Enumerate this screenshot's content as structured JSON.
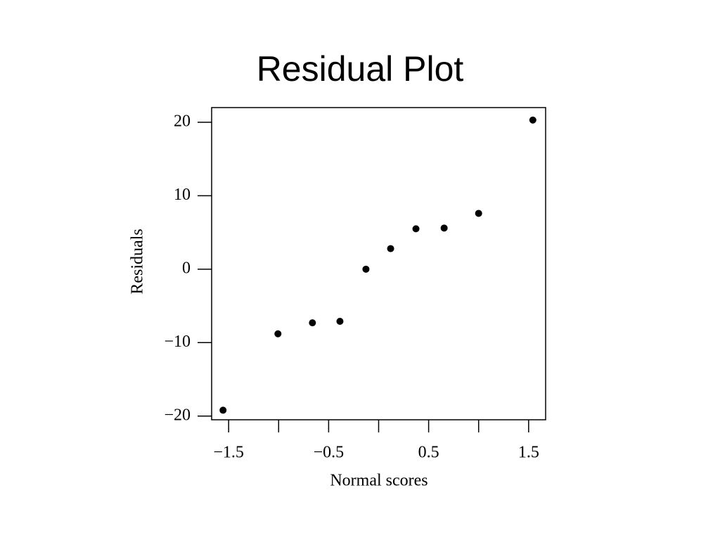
{
  "chart_data": {
    "type": "scatter",
    "title": "Residual Plot",
    "x_label": "Normal scores",
    "y_label": "Residuals",
    "x": [
      -1.556,
      -1.007,
      -0.662,
      -0.387,
      -0.127,
      0.12,
      0.373,
      0.655,
      1.0,
      1.542
    ],
    "values": [
      -19.2,
      -8.8,
      -7.3,
      -7.1,
      0,
      2.8,
      5.5,
      5.6,
      7.6,
      20.3
    ],
    "color": "#000000",
    "xlim": [
      -1.67,
      1.67
    ],
    "xticks": [
      {
        "value": -1.5,
        "label": "−1.5"
      },
      {
        "value": -0.5,
        "label": "−0.5"
      },
      0.5,
      1.5
    ],
    "xminorticks": [
      -1,
      0,
      1
    ],
    "ylim": [
      -20.5,
      22
    ],
    "yticks": [
      {
        "value": -20,
        "label": "−20"
      },
      {
        "value": -10,
        "label": "−10"
      },
      0,
      10,
      20
    ],
    "grid": false
  }
}
